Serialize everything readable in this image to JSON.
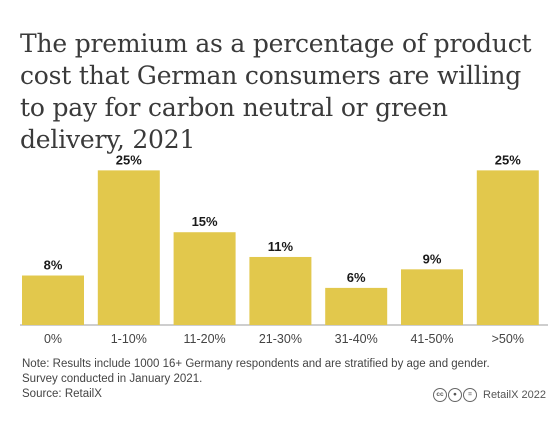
{
  "title": "The premium as a percentage of product cost that German consumers are willing to pay for carbon neutral or green delivery, 2021",
  "chart_data": {
    "type": "bar",
    "categories": [
      "0%",
      "1-10%",
      "11-20%",
      "21-30%",
      "31-40%",
      "41-50%",
      ">50%"
    ],
    "values": [
      8,
      25,
      15,
      11,
      6,
      9,
      25
    ],
    "value_labels": [
      "8%",
      "25%",
      "15%",
      "11%",
      "6%",
      "9%",
      "25%"
    ],
    "ylim": [
      0,
      27
    ],
    "grid": false,
    "bar_color": "#e2c84c"
  },
  "footer": {
    "note_line1": "Note: Results include 1000 16+ Germany respondents and are stratified by age and gender.",
    "note_line2": "Survey conducted in January 2021.",
    "source": "Source: RetailX",
    "credit": "RetailX 2022",
    "license_icons": [
      "creative-commons-icon",
      "attribution-icon",
      "equals-icon"
    ]
  }
}
